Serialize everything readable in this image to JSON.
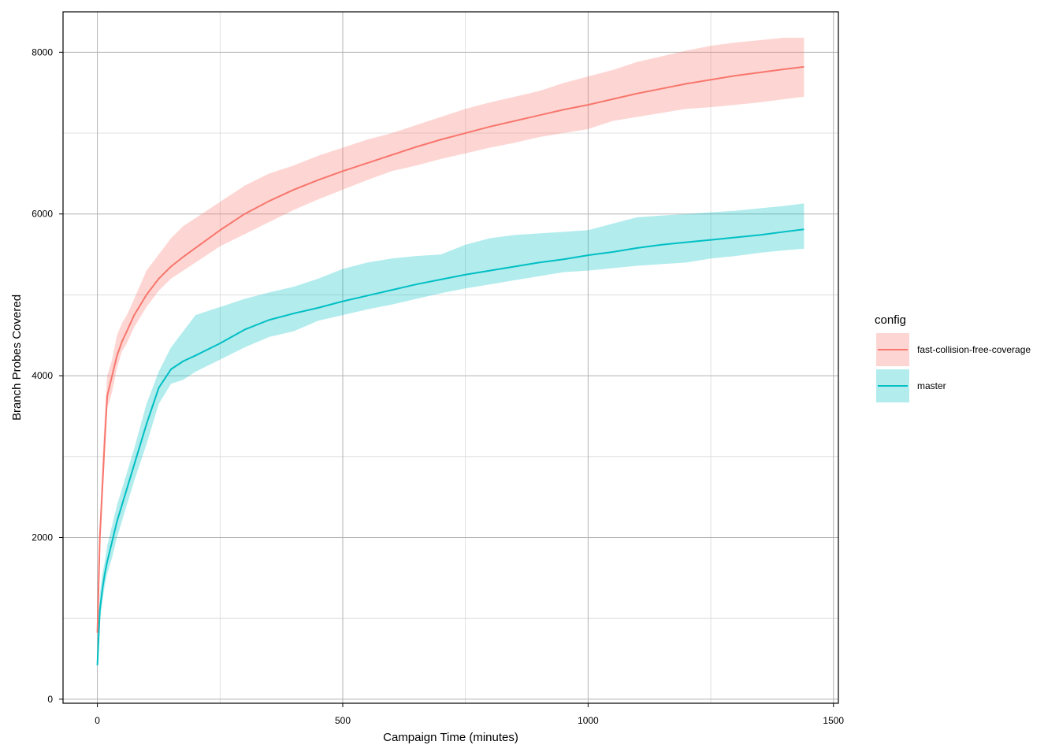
{
  "chart_data": {
    "type": "line",
    "title": "",
    "xlabel": "Campaign Time (minutes)",
    "ylabel": "Branch Probes Covered",
    "xlim": [
      -70,
      1510
    ],
    "ylim": [
      -50,
      8500
    ],
    "x_ticks": [
      0,
      500,
      1000,
      1500
    ],
    "y_ticks": [
      0,
      2000,
      4000,
      6000,
      8000
    ],
    "grid": true,
    "legend": {
      "title": "config",
      "position": "right"
    },
    "series": [
      {
        "name": "fast-collision-free-coverage",
        "color": "#F8766D",
        "fill_color": "#F8766D",
        "points": [
          [
            0,
            820
          ],
          [
            5,
            2000
          ],
          [
            10,
            2600
          ],
          [
            15,
            3200
          ],
          [
            20,
            3750
          ],
          [
            30,
            4000
          ],
          [
            40,
            4250
          ],
          [
            50,
            4420
          ],
          [
            60,
            4550
          ],
          [
            75,
            4750
          ],
          [
            100,
            5000
          ],
          [
            125,
            5200
          ],
          [
            150,
            5350
          ],
          [
            175,
            5470
          ],
          [
            200,
            5580
          ],
          [
            250,
            5800
          ],
          [
            300,
            6000
          ],
          [
            350,
            6160
          ],
          [
            400,
            6300
          ],
          [
            450,
            6420
          ],
          [
            500,
            6530
          ],
          [
            550,
            6630
          ],
          [
            600,
            6730
          ],
          [
            650,
            6830
          ],
          [
            700,
            6920
          ],
          [
            750,
            7000
          ],
          [
            800,
            7080
          ],
          [
            850,
            7150
          ],
          [
            900,
            7220
          ],
          [
            950,
            7290
          ],
          [
            1000,
            7350
          ],
          [
            1050,
            7420
          ],
          [
            1100,
            7490
          ],
          [
            1150,
            7550
          ],
          [
            1200,
            7610
          ],
          [
            1250,
            7660
          ],
          [
            1300,
            7710
          ],
          [
            1350,
            7750
          ],
          [
            1400,
            7790
          ],
          [
            1440,
            7820
          ]
        ],
        "band": [
          [
            0,
            800,
            900
          ],
          [
            5,
            1850,
            2200
          ],
          [
            10,
            2400,
            2900
          ],
          [
            15,
            3000,
            3500
          ],
          [
            20,
            3600,
            4000
          ],
          [
            30,
            3800,
            4200
          ],
          [
            40,
            4100,
            4500
          ],
          [
            50,
            4300,
            4650
          ],
          [
            60,
            4400,
            4750
          ],
          [
            75,
            4600,
            4950
          ],
          [
            100,
            4850,
            5300
          ],
          [
            125,
            5050,
            5500
          ],
          [
            150,
            5200,
            5700
          ],
          [
            175,
            5300,
            5850
          ],
          [
            200,
            5400,
            5950
          ],
          [
            250,
            5600,
            6150
          ],
          [
            300,
            5750,
            6350
          ],
          [
            350,
            5900,
            6500
          ],
          [
            400,
            6050,
            6600
          ],
          [
            450,
            6180,
            6720
          ],
          [
            500,
            6300,
            6820
          ],
          [
            550,
            6420,
            6920
          ],
          [
            600,
            6530,
            7000
          ],
          [
            650,
            6600,
            7100
          ],
          [
            700,
            6680,
            7200
          ],
          [
            750,
            6750,
            7300
          ],
          [
            800,
            6820,
            7380
          ],
          [
            850,
            6880,
            7450
          ],
          [
            900,
            6950,
            7520
          ],
          [
            950,
            7000,
            7620
          ],
          [
            1000,
            7050,
            7700
          ],
          [
            1050,
            7150,
            7780
          ],
          [
            1100,
            7200,
            7880
          ],
          [
            1150,
            7250,
            7950
          ],
          [
            1200,
            7300,
            8020
          ],
          [
            1250,
            7320,
            8080
          ],
          [
            1300,
            7350,
            8120
          ],
          [
            1350,
            7380,
            8150
          ],
          [
            1400,
            7420,
            8180
          ],
          [
            1440,
            7450,
            8180
          ]
        ]
      },
      {
        "name": "master",
        "color": "#00BFC4",
        "fill_color": "#00BFC4",
        "points": [
          [
            0,
            420
          ],
          [
            5,
            1100
          ],
          [
            10,
            1350
          ],
          [
            15,
            1550
          ],
          [
            20,
            1700
          ],
          [
            30,
            1950
          ],
          [
            40,
            2200
          ],
          [
            50,
            2400
          ],
          [
            60,
            2600
          ],
          [
            75,
            2900
          ],
          [
            100,
            3400
          ],
          [
            125,
            3850
          ],
          [
            150,
            4080
          ],
          [
            175,
            4180
          ],
          [
            200,
            4250
          ],
          [
            250,
            4400
          ],
          [
            300,
            4570
          ],
          [
            350,
            4690
          ],
          [
            400,
            4770
          ],
          [
            450,
            4840
          ],
          [
            500,
            4920
          ],
          [
            550,
            4990
          ],
          [
            600,
            5060
          ],
          [
            650,
            5130
          ],
          [
            700,
            5190
          ],
          [
            750,
            5250
          ],
          [
            800,
            5300
          ],
          [
            850,
            5350
          ],
          [
            900,
            5400
          ],
          [
            950,
            5440
          ],
          [
            1000,
            5490
          ],
          [
            1050,
            5530
          ],
          [
            1100,
            5580
          ],
          [
            1150,
            5620
          ],
          [
            1200,
            5650
          ],
          [
            1250,
            5680
          ],
          [
            1300,
            5710
          ],
          [
            1350,
            5740
          ],
          [
            1400,
            5780
          ],
          [
            1440,
            5810
          ]
        ],
        "band": [
          [
            0,
            400,
            700
          ],
          [
            5,
            950,
            1300
          ],
          [
            10,
            1200,
            1550
          ],
          [
            15,
            1400,
            1700
          ],
          [
            20,
            1550,
            1900
          ],
          [
            30,
            1750,
            2150
          ],
          [
            40,
            2000,
            2400
          ],
          [
            50,
            2200,
            2600
          ],
          [
            60,
            2400,
            2800
          ],
          [
            75,
            2700,
            3100
          ],
          [
            100,
            3150,
            3650
          ],
          [
            125,
            3650,
            4050
          ],
          [
            150,
            3900,
            4350
          ],
          [
            175,
            3950,
            4550
          ],
          [
            200,
            4050,
            4750
          ],
          [
            250,
            4200,
            4850
          ],
          [
            300,
            4350,
            4950
          ],
          [
            350,
            4480,
            5030
          ],
          [
            400,
            4550,
            5100
          ],
          [
            450,
            4680,
            5200
          ],
          [
            500,
            4750,
            5320
          ],
          [
            550,
            4820,
            5400
          ],
          [
            600,
            4880,
            5450
          ],
          [
            650,
            4950,
            5480
          ],
          [
            700,
            5020,
            5500
          ],
          [
            750,
            5080,
            5620
          ],
          [
            800,
            5130,
            5700
          ],
          [
            850,
            5180,
            5740
          ],
          [
            900,
            5230,
            5760
          ],
          [
            950,
            5280,
            5780
          ],
          [
            1000,
            5300,
            5800
          ],
          [
            1050,
            5330,
            5880
          ],
          [
            1100,
            5360,
            5960
          ],
          [
            1150,
            5380,
            5980
          ],
          [
            1200,
            5400,
            6000
          ],
          [
            1250,
            5450,
            6020
          ],
          [
            1300,
            5480,
            6040
          ],
          [
            1350,
            5520,
            6070
          ],
          [
            1400,
            5550,
            6100
          ],
          [
            1440,
            5570,
            6130
          ]
        ]
      }
    ]
  }
}
